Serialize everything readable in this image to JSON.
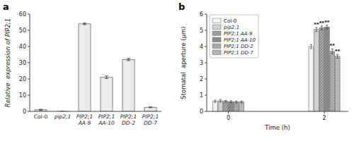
{
  "chart_data": [
    {
      "type": "bar",
      "title": "a",
      "categories": [
        "Col-0",
        "pip2;1",
        "PIP2;1\nAA-9",
        "PIP2;1\nAA-10",
        "PIP2;1\nDD-2",
        "PIP2;1\nDD-7"
      ],
      "values": [
        1.0,
        0.05,
        54.0,
        21.0,
        32.0,
        2.5
      ],
      "errors": [
        0.3,
        0.05,
        0.5,
        0.8,
        0.7,
        0.3
      ],
      "y_label": "Relative  expression of PIP2;1",
      "ylim": [
        0,
        60
      ],
      "yticks": [
        0,
        10,
        20,
        30,
        40,
        50,
        60
      ],
      "color": "#ebebeb",
      "grid": false
    },
    {
      "type": "bar",
      "title": "b",
      "x": [
        0,
        2
      ],
      "series": [
        {
          "name": "Col-0",
          "color": "#f5f5f5",
          "values": [
            0.62,
            4.0
          ],
          "errors": [
            0.07,
            0.12
          ]
        },
        {
          "name": "pip2;1",
          "color": "#d0d0d0",
          "values": [
            0.65,
            5.05
          ],
          "errors": [
            0.08,
            0.12
          ],
          "significance": [
            null,
            "**"
          ]
        },
        {
          "name": "PIP2;1 AA-9",
          "color": "#a8a8a8",
          "values": [
            0.62,
            5.15
          ],
          "errors": [
            0.06,
            0.12
          ],
          "significance": [
            null,
            "**"
          ]
        },
        {
          "name": "PIP2;1 AA-10",
          "color": "#909090",
          "values": [
            0.6,
            5.2
          ],
          "errors": [
            0.06,
            0.12
          ],
          "significance": [
            null,
            "**"
          ]
        },
        {
          "name": "PIP2;1 DD-2",
          "color": "#b0b0b0",
          "values": [
            0.58,
            3.7
          ],
          "errors": [
            0.06,
            0.15
          ],
          "significance": [
            null,
            "**"
          ]
        },
        {
          "name": "PIP2;1 DD-7",
          "color": "#c0c0c0",
          "values": [
            0.58,
            3.4
          ],
          "errors": [
            0.06,
            0.12
          ],
          "significance": [
            null,
            "**"
          ]
        }
      ],
      "x_label": "Time (h)",
      "y_label": "Stomatal  aperture (μm)",
      "xlim": [
        -0.45,
        2.5
      ],
      "xticks": [
        0,
        2
      ],
      "ylim": [
        0,
        6
      ],
      "yticks": [
        0,
        1,
        2,
        3,
        4,
        5,
        6
      ],
      "legend": "upper left",
      "grid": false
    }
  ]
}
